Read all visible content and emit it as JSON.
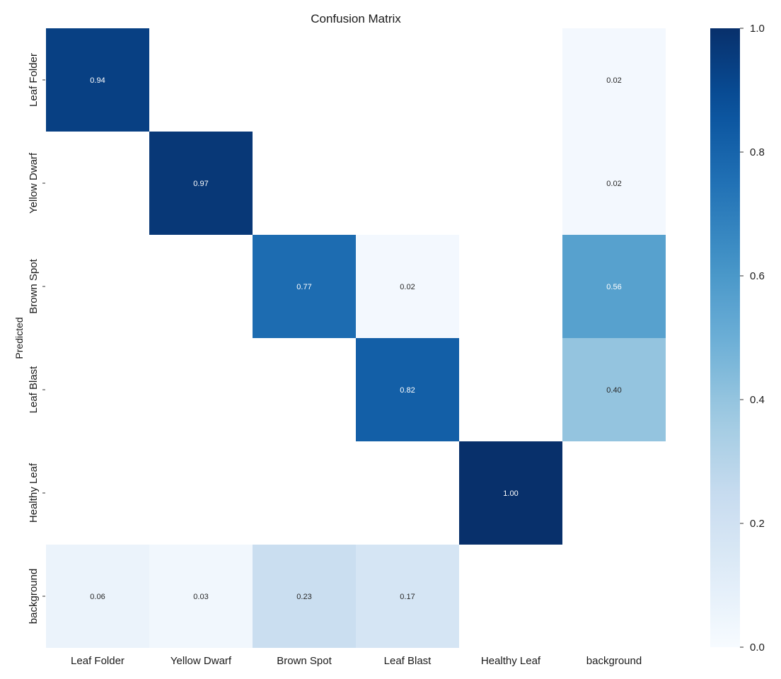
{
  "chart_data": {
    "type": "heatmap",
    "title": "Confusion Matrix",
    "ylabel": "Predicted",
    "xlabel": "",
    "x_categories": [
      "Leaf Folder",
      "Yellow Dwarf",
      "Brown Spot",
      "Leaf Blast",
      "Healthy Leaf",
      "background"
    ],
    "y_categories": [
      "Leaf Folder",
      "Yellow Dwarf",
      "Brown Spot",
      "Leaf Blast",
      "Healthy Leaf",
      "background"
    ],
    "values": [
      [
        0.94,
        null,
        null,
        null,
        null,
        0.02
      ],
      [
        null,
        0.97,
        null,
        null,
        null,
        0.02
      ],
      [
        null,
        null,
        0.77,
        0.02,
        null,
        0.56
      ],
      [
        null,
        null,
        null,
        0.82,
        null,
        0.4
      ],
      [
        null,
        null,
        null,
        null,
        1.0,
        null
      ],
      [
        0.06,
        0.03,
        0.23,
        0.17,
        null,
        null
      ]
    ],
    "value_format": "0.00",
    "colormap": "Blues",
    "color_range": [
      0.0,
      1.0
    ],
    "colorbar_ticks": [
      0.0,
      0.2,
      0.4,
      0.6,
      0.8,
      1.0
    ],
    "colorbar_tick_labels": [
      "0.0",
      "0.2",
      "0.4",
      "0.6",
      "0.8",
      "1.0"
    ],
    "legend": "right"
  }
}
